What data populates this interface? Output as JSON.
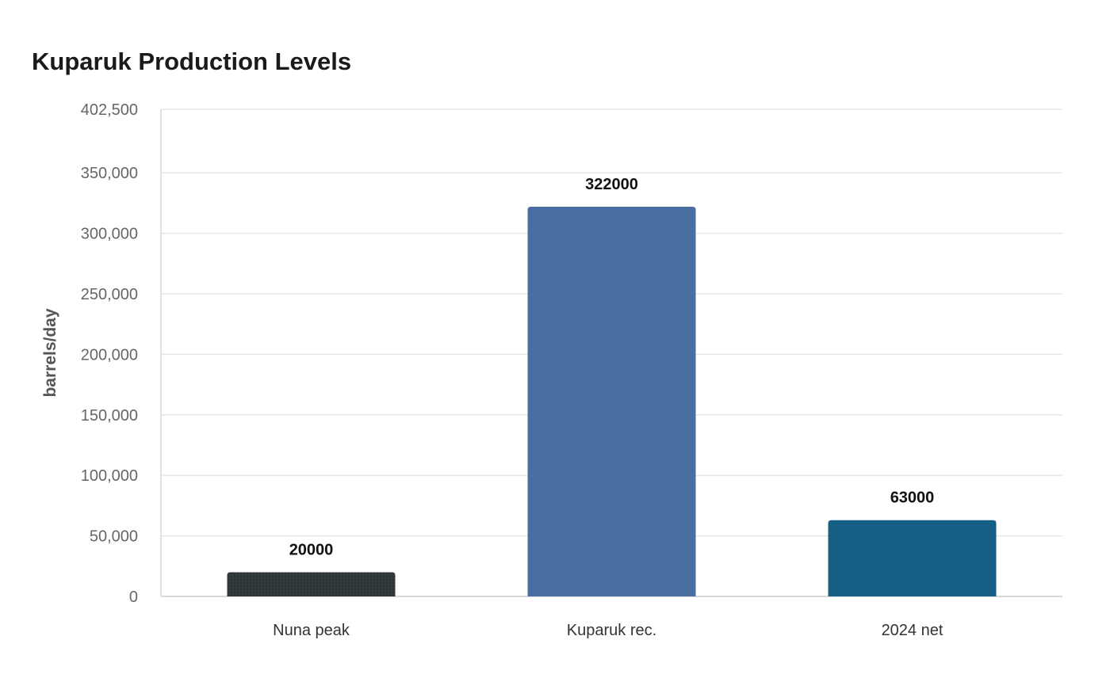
{
  "chart_data": {
    "type": "bar",
    "title": "Kuparuk Production Levels",
    "xlabel": "",
    "ylabel": "barrels/day",
    "categories": [
      "Nuna peak",
      "Kuparuk rec.",
      "2024 net"
    ],
    "values": [
      20000,
      322000,
      63000
    ],
    "data_labels": [
      "20000",
      "322000",
      "63000"
    ],
    "ylim": [
      0,
      402500
    ],
    "y_ticks": [
      0,
      50000,
      100000,
      150000,
      200000,
      250000,
      300000,
      350000,
      402500
    ],
    "y_tick_labels": [
      "0",
      "50,000",
      "100,000",
      "150,000",
      "200,000",
      "250,000",
      "300,000",
      "350,000",
      "402,500"
    ],
    "bar_colors": [
      "#2e3437",
      "#4a6ea2",
      "#166086"
    ],
    "bar_patterns": [
      "dotted",
      "none",
      "none"
    ],
    "grid": true,
    "legend": "none"
  }
}
